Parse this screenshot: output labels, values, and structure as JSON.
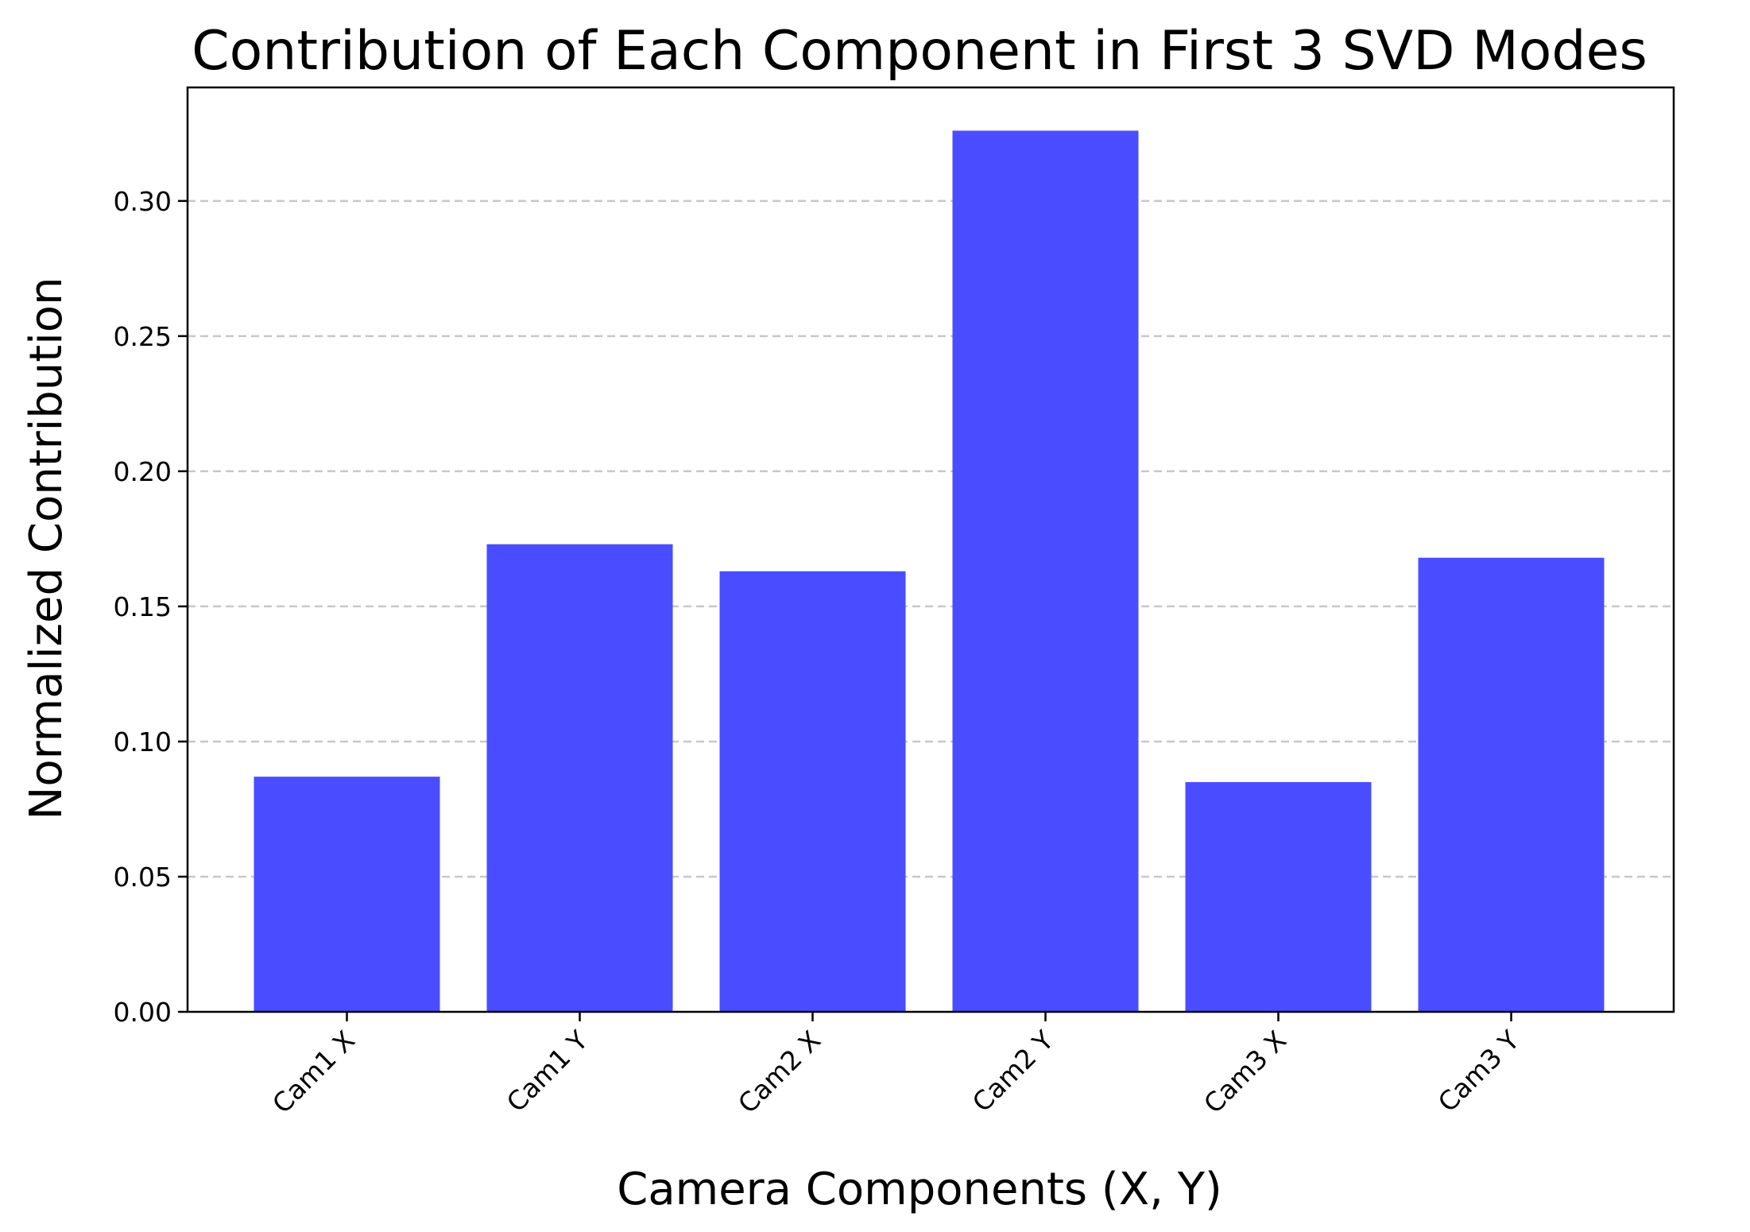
{
  "chart_data": {
    "type": "bar",
    "title": "Contribution of Each Component in First 3 SVD Modes",
    "xlabel": "Camera Components (X, Y)",
    "ylabel": "Normalized Contribution",
    "categories": [
      "Cam1 X",
      "Cam1 Y",
      "Cam2 X",
      "Cam2 Y",
      "Cam3 X",
      "Cam3 Y"
    ],
    "values": [
      0.087,
      0.173,
      0.163,
      0.326,
      0.085,
      0.168
    ],
    "ylim": [
      0,
      0.342
    ],
    "yticks": [
      0.0,
      0.05,
      0.1,
      0.15,
      0.2,
      0.25,
      0.3
    ],
    "ytick_labels": [
      "0.00",
      "0.05",
      "0.10",
      "0.15",
      "0.20",
      "0.25",
      "0.30"
    ],
    "grid": "y-dashed",
    "legend": "none",
    "bar_color": "#4a4dff"
  }
}
